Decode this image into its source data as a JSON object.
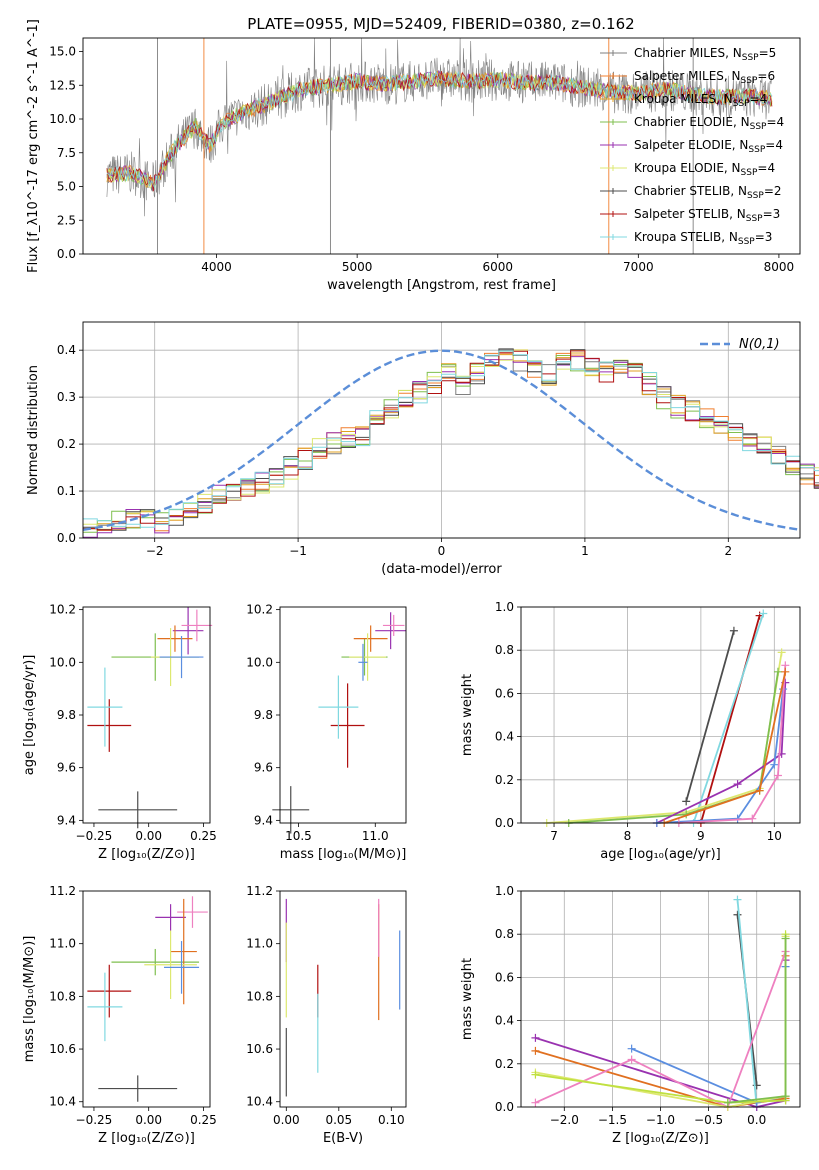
{
  "figure": {
    "title": "PLATE=0955, MJD=52409, FIBERID=0380, z=0.162"
  },
  "colors": {
    "chabrier_miles": "#7f7f7f",
    "salpeter_miles": "#f07f2f",
    "kroupa_miles": "#e0a020",
    "chabrier_elodie": "#7fbf4f",
    "salpeter_elodie": "#9932b0",
    "kroupa_elodie": "#dde870",
    "chabrier_stelib": "#4d4d4d",
    "salpeter_stelib": "#b01010",
    "kroupa_stelib": "#80d8e0",
    "extra_blue": "#5b8ee0",
    "extra_pink": "#ee80c0",
    "extra_orange": "#e07020",
    "extra_lime": "#c0e040",
    "gauss": "#5b8ed8"
  },
  "chart_data": [
    {
      "id": "spectrum",
      "type": "line",
      "xlabel": "wavelength [Angstrom, rest frame]",
      "ylabel": "Flux [f_λ10^-17 erg cm^-2 s^-1 A^-1]",
      "xlim": [
        3050,
        8150
      ],
      "ylim": [
        0,
        16
      ],
      "xticks": [
        4000,
        5000,
        6000,
        7000,
        8000
      ],
      "yticks": [
        0.0,
        2.5,
        5.0,
        7.5,
        10.0,
        12.5,
        15.0
      ],
      "legend_position": "right",
      "legend": [
        {
          "label": "Chabrier MILES, N_SSP=5",
          "color_key": "chabrier_miles"
        },
        {
          "label": "Salpeter MILES, N_SSP=6",
          "color_key": "salpeter_miles"
        },
        {
          "label": "Kroupa MILES, N_SSP=4",
          "color_key": "kroupa_miles"
        },
        {
          "label": "Chabrier ELODIE, N_SSP=4",
          "color_key": "chabrier_elodie"
        },
        {
          "label": "Salpeter ELODIE, N_SSP=4",
          "color_key": "salpeter_elodie"
        },
        {
          "label": "Kroupa ELODIE, N_SSP=4",
          "color_key": "kroupa_elodie"
        },
        {
          "label": "Chabrier STELIB, N_SSP=2",
          "color_key": "chabrier_stelib"
        },
        {
          "label": "Salpeter STELIB, N_SSP=3",
          "color_key": "salpeter_stelib"
        },
        {
          "label": "Kroupa STELIB, N_SSP=3",
          "color_key": "kroupa_stelib"
        }
      ],
      "continuum": [
        [
          3200,
          5.8
        ],
        [
          3400,
          6.0
        ],
        [
          3550,
          5.2
        ],
        [
          3700,
          7.8
        ],
        [
          3850,
          9.5
        ],
        [
          3950,
          8.0
        ],
        [
          4050,
          9.8
        ],
        [
          4200,
          10.5
        ],
        [
          4400,
          11.3
        ],
        [
          4600,
          12.2
        ],
        [
          4800,
          12.5
        ],
        [
          5000,
          12.8
        ],
        [
          5200,
          12.6
        ],
        [
          5400,
          12.8
        ],
        [
          5600,
          13.0
        ],
        [
          5800,
          12.8
        ],
        [
          6000,
          12.9
        ],
        [
          6200,
          12.7
        ],
        [
          6400,
          12.7
        ],
        [
          6600,
          12.4
        ],
        [
          6800,
          12.0
        ],
        [
          7000,
          11.9
        ],
        [
          7200,
          12.2
        ],
        [
          7400,
          11.8
        ],
        [
          7600,
          11.6
        ],
        [
          7800,
          11.7
        ],
        [
          7950,
          11.5
        ]
      ],
      "vertical_spikes": [
        3580,
        3910,
        4810,
        6790,
        7390
      ]
    },
    {
      "id": "residuals",
      "type": "step",
      "xlabel": "(data-model)/error",
      "ylabel": "Normed distribution",
      "xlim": [
        -2.5,
        2.5
      ],
      "ylim": [
        0,
        0.46
      ],
      "xticks": [
        -2,
        -1,
        0,
        1,
        2
      ],
      "yticks": [
        0.0,
        0.1,
        0.2,
        0.3,
        0.4
      ],
      "grid": true,
      "legend": [
        {
          "label": "N(0,1)",
          "style": "dashed"
        }
      ],
      "legend_position": "top-right",
      "bin_width": 0.1,
      "bin_start": -2.5,
      "histogram": [
        0.02,
        0.03,
        0.04,
        0.045,
        0.04,
        0.035,
        0.045,
        0.06,
        0.07,
        0.09,
        0.1,
        0.11,
        0.12,
        0.13,
        0.15,
        0.17,
        0.19,
        0.2,
        0.21,
        0.22,
        0.25,
        0.28,
        0.29,
        0.31,
        0.33,
        0.35,
        0.33,
        0.35,
        0.37,
        0.39,
        0.38,
        0.36,
        0.35,
        0.37,
        0.38,
        0.37,
        0.35,
        0.36,
        0.35,
        0.33,
        0.3,
        0.28,
        0.27,
        0.26,
        0.24,
        0.22,
        0.2,
        0.19,
        0.17,
        0.15,
        0.14,
        0.13,
        0.12,
        0.11,
        0.1,
        0.08,
        0.07,
        0.06,
        0.06,
        0.05,
        0.04,
        0.05,
        0.04,
        0.03,
        0.03,
        0.02,
        0.03,
        0.03,
        0.02,
        0.02
      ]
    },
    {
      "id": "age_vs_Z",
      "type": "errorbar",
      "xlabel": "Z [log10(Z/Z_sun)]",
      "ylabel": "age [log10(age/yr)]",
      "xlim": [
        -0.3,
        0.28
      ],
      "ylim": [
        9.39,
        10.21
      ],
      "xticks": [
        -0.25,
        0.0,
        0.25
      ],
      "yticks": [
        9.4,
        9.6,
        9.8,
        10.0,
        10.2
      ],
      "points": [
        {
          "x": -0.05,
          "y": 9.44,
          "xerr": 0.18,
          "yerr": 0.07,
          "color_key": "chabrier_stelib"
        },
        {
          "x": -0.18,
          "y": 9.76,
          "xerr": 0.1,
          "yerr": 0.1,
          "color_key": "salpeter_stelib"
        },
        {
          "x": -0.2,
          "y": 9.83,
          "xerr": 0.08,
          "yerr": 0.15,
          "color_key": "kroupa_stelib"
        },
        {
          "x": 0.03,
          "y": 10.02,
          "xerr": 0.2,
          "yerr": 0.09,
          "color_key": "chabrier_elodie"
        },
        {
          "x": 0.18,
          "y": 10.12,
          "xerr": 0.07,
          "yerr": 0.09,
          "color_key": "salpeter_elodie"
        },
        {
          "x": 0.22,
          "y": 10.14,
          "xerr": 0.07,
          "yerr": 0.06,
          "color_key": "extra_pink"
        },
        {
          "x": 0.12,
          "y": 10.09,
          "xerr": 0.08,
          "yerr": 0.05,
          "color_key": "extra_orange"
        },
        {
          "x": 0.1,
          "y": 10.02,
          "xerr": 0.09,
          "yerr": 0.11,
          "color_key": "kroupa_elodie"
        },
        {
          "x": 0.15,
          "y": 10.02,
          "xerr": 0.1,
          "yerr": 0.08,
          "color_key": "extra_blue"
        }
      ]
    },
    {
      "id": "age_vs_mass",
      "type": "errorbar",
      "xlabel": "mass [log10(M/M_sun)]",
      "ylabel": "",
      "xlim": [
        10.38,
        11.2
      ],
      "ylim": [
        9.39,
        10.21
      ],
      "xticks": [
        10.5,
        11.0
      ],
      "yticks": [
        9.4,
        9.6,
        9.8,
        10.0,
        10.2
      ],
      "points": [
        {
          "x": 10.45,
          "y": 9.44,
          "xerr": 0.12,
          "yerr": 0.09,
          "color_key": "chabrier_stelib"
        },
        {
          "x": 10.82,
          "y": 9.76,
          "xerr": 0.11,
          "yerr": 0.16,
          "color_key": "salpeter_stelib"
        },
        {
          "x": 10.76,
          "y": 9.83,
          "xerr": 0.13,
          "yerr": 0.12,
          "color_key": "kroupa_stelib"
        },
        {
          "x": 10.93,
          "y": 10.02,
          "xerr": 0.15,
          "yerr": 0.07,
          "color_key": "chabrier_elodie"
        },
        {
          "x": 11.1,
          "y": 10.12,
          "xerr": 0.1,
          "yerr": 0.07,
          "color_key": "salpeter_elodie"
        },
        {
          "x": 11.12,
          "y": 10.14,
          "xerr": 0.07,
          "yerr": 0.04,
          "color_key": "extra_pink"
        },
        {
          "x": 10.97,
          "y": 10.09,
          "xerr": 0.11,
          "yerr": 0.05,
          "color_key": "extra_orange"
        },
        {
          "x": 10.95,
          "y": 10.02,
          "xerr": 0.12,
          "yerr": 0.09,
          "color_key": "kroupa_elodie"
        },
        {
          "x": 10.92,
          "y": 10.0,
          "xerr": 0.03,
          "yerr": 0.07,
          "color_key": "extra_blue"
        }
      ]
    },
    {
      "id": "weight_vs_age",
      "type": "line",
      "xlabel": "age [log10(age/yr)]",
      "ylabel": "mass weight",
      "xlim": [
        6.55,
        10.35
      ],
      "ylim": [
        0,
        1.0
      ],
      "xticks": [
        7,
        8,
        9,
        10
      ],
      "yticks": [
        0.0,
        0.2,
        0.4,
        0.6,
        0.8,
        1.0
      ],
      "grid": true,
      "series": [
        {
          "color_key": "chabrier_stelib",
          "points": [
            [
              8.8,
              0.1
            ],
            [
              9.45,
              0.89
            ]
          ]
        },
        {
          "color_key": "salpeter_stelib",
          "points": [
            [
              9.0,
              0.0
            ],
            [
              9.8,
              0.96
            ]
          ]
        },
        {
          "color_key": "kroupa_stelib",
          "points": [
            [
              8.9,
              0.0
            ],
            [
              9.85,
              0.97
            ]
          ]
        },
        {
          "color_key": "kroupa_elodie",
          "points": [
            [
              6.9,
              0.0
            ],
            [
              8.8,
              0.05
            ],
            [
              9.8,
              0.16
            ],
            [
              10.1,
              0.79
            ]
          ]
        },
        {
          "color_key": "chabrier_elodie",
          "points": [
            [
              7.2,
              0.0
            ],
            [
              8.8,
              0.04
            ],
            [
              9.8,
              0.15
            ],
            [
              10.05,
              0.7
            ]
          ]
        },
        {
          "color_key": "salpeter_elodie",
          "points": [
            [
              8.4,
              0.0
            ],
            [
              9.5,
              0.18
            ],
            [
              10.1,
              0.32
            ],
            [
              10.15,
              0.65
            ]
          ]
        },
        {
          "color_key": "extra_blue",
          "points": [
            [
              8.4,
              0.0
            ],
            [
              9.5,
              0.02
            ],
            [
              10.0,
              0.27
            ],
            [
              10.12,
              0.62
            ]
          ]
        },
        {
          "color_key": "extra_pink",
          "points": [
            [
              8.7,
              0.0
            ],
            [
              9.7,
              0.02
            ],
            [
              10.05,
              0.22
            ],
            [
              10.15,
              0.73
            ]
          ]
        },
        {
          "color_key": "extra_orange",
          "points": [
            [
              8.5,
              0.0
            ],
            [
              9.8,
              0.15
            ],
            [
              10.15,
              0.7
            ]
          ]
        }
      ]
    },
    {
      "id": "mass_vs_Z",
      "type": "errorbar",
      "xlabel": "Z [log10(Z/Z_sun)]",
      "ylabel": "mass [log10(M/M_sun)]",
      "xlim": [
        -0.3,
        0.28
      ],
      "ylim": [
        10.38,
        11.2
      ],
      "xticks": [
        -0.25,
        0.0,
        0.25
      ],
      "yticks": [
        10.4,
        10.6,
        10.8,
        11.0,
        11.2
      ],
      "points": [
        {
          "x": -0.05,
          "y": 10.45,
          "xerr": 0.18,
          "yerr": 0.05,
          "color_key": "chabrier_stelib"
        },
        {
          "x": -0.18,
          "y": 10.82,
          "xerr": 0.1,
          "yerr": 0.1,
          "color_key": "salpeter_stelib"
        },
        {
          "x": -0.2,
          "y": 10.76,
          "xerr": 0.08,
          "yerr": 0.13,
          "color_key": "kroupa_stelib"
        },
        {
          "x": 0.03,
          "y": 10.93,
          "xerr": 0.2,
          "yerr": 0.05,
          "color_key": "chabrier_elodie"
        },
        {
          "x": 0.1,
          "y": 11.1,
          "xerr": 0.07,
          "yerr": 0.05,
          "color_key": "salpeter_elodie"
        },
        {
          "x": 0.2,
          "y": 11.12,
          "xerr": 0.07,
          "yerr": 0.06,
          "color_key": "extra_pink"
        },
        {
          "x": 0.16,
          "y": 10.97,
          "xerr": 0.06,
          "yerr": 0.2,
          "color_key": "extra_orange"
        },
        {
          "x": 0.1,
          "y": 10.92,
          "xerr": 0.12,
          "yerr": 0.13,
          "color_key": "kroupa_elodie"
        },
        {
          "x": 0.15,
          "y": 10.91,
          "xerr": 0.08,
          "yerr": 0.1,
          "color_key": "extra_blue"
        }
      ]
    },
    {
      "id": "mass_vs_ebv",
      "type": "errorbar",
      "xlabel": "E(B-V)",
      "ylabel": "",
      "xlim": [
        -0.006,
        0.114
      ],
      "ylim": [
        10.38,
        11.2
      ],
      "xticks": [
        0.0,
        0.05,
        0.1
      ],
      "yticks": [
        10.4,
        10.6,
        10.8,
        11.0,
        11.2
      ],
      "points": [
        {
          "x": 0.0,
          "y": 10.55,
          "xerr": 0,
          "yerr": 0.13,
          "color_key": "chabrier_stelib"
        },
        {
          "x": 0.0,
          "y": 11.05,
          "xerr": 0,
          "yerr": 0.12,
          "color_key": "salpeter_elodie"
        },
        {
          "x": 0.0,
          "y": 10.9,
          "xerr": 0,
          "yerr": 0.18,
          "color_key": "kroupa_elodie"
        },
        {
          "x": 0.03,
          "y": 10.82,
          "xerr": 0,
          "yerr": 0.1,
          "color_key": "salpeter_stelib"
        },
        {
          "x": 0.03,
          "y": 10.66,
          "xerr": 0,
          "yerr": 0.15,
          "color_key": "kroupa_stelib"
        },
        {
          "x": 0.088,
          "y": 10.93,
          "xerr": 0,
          "yerr": 0.22,
          "color_key": "extra_orange"
        },
        {
          "x": 0.088,
          "y": 11.06,
          "xerr": 0,
          "yerr": 0.11,
          "color_key": "extra_pink"
        },
        {
          "x": 0.108,
          "y": 10.9,
          "xerr": 0,
          "yerr": 0.15,
          "color_key": "extra_blue"
        }
      ]
    },
    {
      "id": "weight_vs_Z",
      "type": "line",
      "xlabel": "Z [log10(Z/Z_sun)]",
      "ylabel": "mass weight",
      "xlim": [
        -2.45,
        0.45
      ],
      "ylim": [
        0,
        1.0
      ],
      "xticks": [
        -2.0,
        -1.5,
        -1.0,
        -0.5,
        0.0
      ],
      "yticks": [
        0.0,
        0.2,
        0.4,
        0.6,
        0.8,
        1.0
      ],
      "grid": true,
      "series": [
        {
          "color_key": "chabrier_stelib",
          "points": [
            [
              -0.2,
              0.89
            ],
            [
              0.0,
              0.1
            ]
          ]
        },
        {
          "color_key": "kroupa_stelib",
          "points": [
            [
              -0.2,
              0.96
            ],
            [
              0.0,
              0.0
            ]
          ]
        },
        {
          "color_key": "salpeter_elodie",
          "points": [
            [
              -2.3,
              0.32
            ],
            [
              0.0,
              0.0
            ],
            [
              0.3,
              0.03
            ],
            [
              0.3,
              0.68
            ]
          ]
        },
        {
          "color_key": "extra_orange",
          "points": [
            [
              -2.3,
              0.26
            ],
            [
              -0.3,
              0.0
            ],
            [
              0.3,
              0.04
            ],
            [
              0.3,
              0.7
            ]
          ]
        },
        {
          "color_key": "extra_blue",
          "points": [
            [
              -1.3,
              0.27
            ],
            [
              0.0,
              0.02
            ],
            [
              0.3,
              0.05
            ],
            [
              0.3,
              0.65
            ]
          ]
        },
        {
          "color_key": "extra_pink",
          "points": [
            [
              -2.3,
              0.02
            ],
            [
              -1.3,
              0.22
            ],
            [
              -0.3,
              0.0
            ],
            [
              0.3,
              0.72
            ]
          ]
        },
        {
          "color_key": "kroupa_elodie",
          "points": [
            [
              -2.3,
              0.16
            ],
            [
              -0.3,
              0.0
            ],
            [
              0.3,
              0.05
            ],
            [
              0.3,
              0.79
            ]
          ]
        },
        {
          "color_key": "extra_lime",
          "points": [
            [
              -2.3,
              0.15
            ],
            [
              -0.3,
              0.02
            ],
            [
              0.3,
              0.03
            ],
            [
              0.3,
              0.8
            ]
          ]
        },
        {
          "color_key": "chabrier_elodie",
          "points": [
            [
              -0.3,
              0.02
            ],
            [
              0.3,
              0.05
            ],
            [
              0.3,
              0.78
            ]
          ]
        }
      ]
    }
  ]
}
